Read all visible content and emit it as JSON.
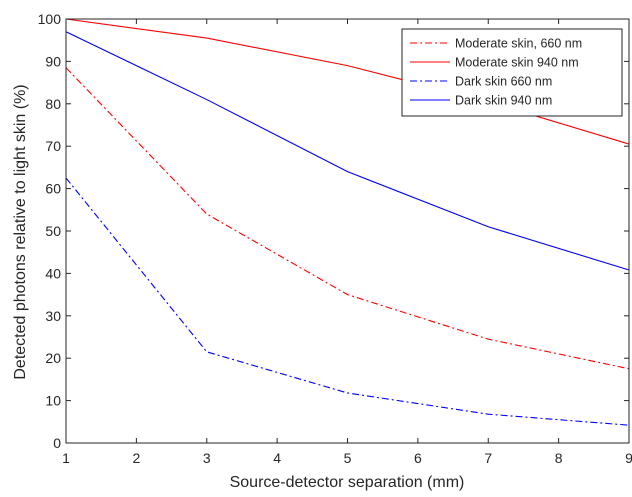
{
  "chart_data": {
    "type": "line",
    "title": "",
    "xlabel": "Source-detector separation (mm)",
    "ylabel": "Detected photons relative to light skin (%)",
    "xlim": [
      1,
      9
    ],
    "ylim": [
      0,
      100
    ],
    "xticks": [
      1,
      2,
      3,
      4,
      5,
      6,
      7,
      8,
      9
    ],
    "yticks": [
      0,
      10,
      20,
      30,
      40,
      50,
      60,
      70,
      80,
      90,
      100
    ],
    "grid": false,
    "legend_position": "top-right",
    "x": [
      1,
      3,
      5,
      7,
      9
    ],
    "series": [
      {
        "name": "Moderate skin, 660 nm",
        "color": "#ff0000",
        "dash": "dash-dot",
        "values": [
          88.5,
          54,
          35,
          24.5,
          17.5
        ]
      },
      {
        "name": "Moderate skin 940 nm",
        "color": "#ff0000",
        "dash": "solid",
        "values": [
          100,
          95.5,
          89,
          80.5,
          70.5
        ]
      },
      {
        "name": "Dark skin 660 nm",
        "color": "#0000ff",
        "dash": "dash-dot",
        "values": [
          62.5,
          21.5,
          11.8,
          6.8,
          4.2
        ]
      },
      {
        "name": "Dark skin 940 nm",
        "color": "#0000ff",
        "dash": "solid",
        "values": [
          97,
          81,
          64,
          51,
          40.8
        ]
      }
    ]
  }
}
